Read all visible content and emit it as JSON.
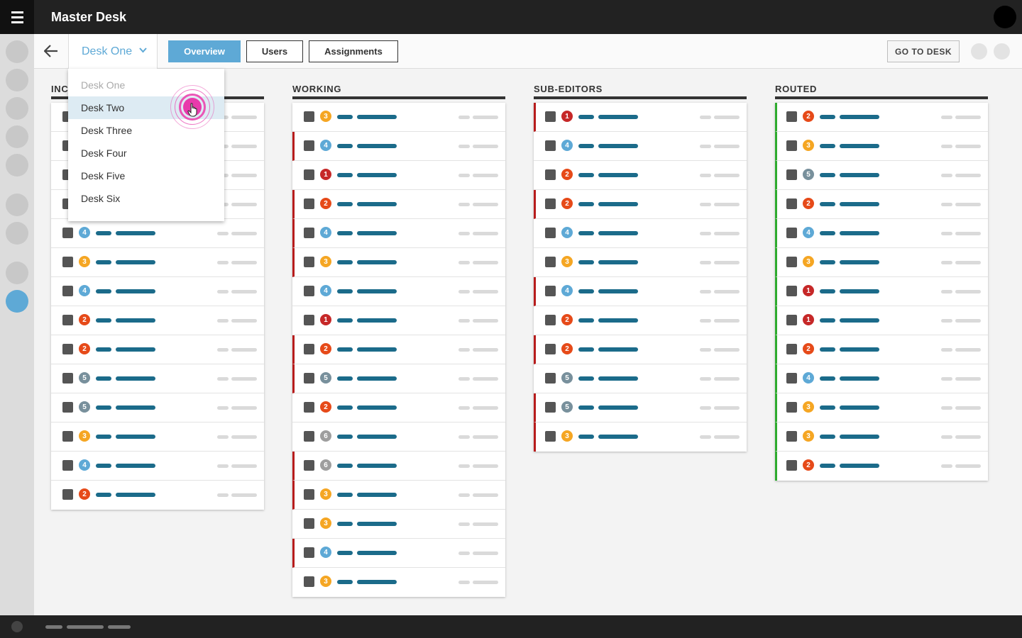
{
  "app": {
    "title": "Master Desk"
  },
  "subnav": {
    "desk_selected": "Desk One",
    "tabs": [
      "Overview",
      "Users",
      "Assignments"
    ],
    "active_tab": "Overview",
    "goto_label": "GO TO DESK"
  },
  "dropdown": {
    "options": [
      "Desk One",
      "Desk Two",
      "Desk Three",
      "Desk Four",
      "Desk Five",
      "Desk Six"
    ],
    "disabled_option": "Desk One",
    "hovered_option": "Desk Two"
  },
  "colors": {
    "accent": "#5ea9d6",
    "flag_red": "#b71c1c",
    "flag_green": "#2eab2e",
    "priority": {
      "1": "#c62828",
      "2": "#e64a19",
      "3": "#f5a623",
      "4": "#5ea9d6",
      "5": "#78909c",
      "6": "#9e9e9e"
    }
  },
  "columns": [
    {
      "title": "INC",
      "rows": [
        {
          "n": "",
          "flag": ""
        },
        {
          "n": "",
          "flag": ""
        },
        {
          "n": "",
          "flag": ""
        },
        {
          "n": "",
          "flag": ""
        },
        {
          "n": "4",
          "flag": ""
        },
        {
          "n": "3",
          "flag": ""
        },
        {
          "n": "4",
          "flag": ""
        },
        {
          "n": "2",
          "flag": ""
        },
        {
          "n": "2",
          "flag": ""
        },
        {
          "n": "5",
          "flag": ""
        },
        {
          "n": "5",
          "flag": ""
        },
        {
          "n": "3",
          "flag": ""
        },
        {
          "n": "4",
          "flag": ""
        },
        {
          "n": "2",
          "flag": ""
        }
      ]
    },
    {
      "title": "WORKING",
      "rows": [
        {
          "n": "3",
          "flag": ""
        },
        {
          "n": "4",
          "flag": "red"
        },
        {
          "n": "1",
          "flag": ""
        },
        {
          "n": "2",
          "flag": "red"
        },
        {
          "n": "4",
          "flag": "red"
        },
        {
          "n": "3",
          "flag": "red"
        },
        {
          "n": "4",
          "flag": ""
        },
        {
          "n": "1",
          "flag": ""
        },
        {
          "n": "2",
          "flag": "red"
        },
        {
          "n": "5",
          "flag": "red"
        },
        {
          "n": "2",
          "flag": ""
        },
        {
          "n": "6",
          "flag": ""
        },
        {
          "n": "6",
          "flag": "red"
        },
        {
          "n": "3",
          "flag": "red"
        },
        {
          "n": "3",
          "flag": ""
        },
        {
          "n": "4",
          "flag": "red"
        },
        {
          "n": "3",
          "flag": ""
        }
      ]
    },
    {
      "title": "SUB-EDITORS",
      "rows": [
        {
          "n": "1",
          "flag": "red"
        },
        {
          "n": "4",
          "flag": ""
        },
        {
          "n": "2",
          "flag": ""
        },
        {
          "n": "2",
          "flag": "red"
        },
        {
          "n": "4",
          "flag": ""
        },
        {
          "n": "3",
          "flag": ""
        },
        {
          "n": "4",
          "flag": "red"
        },
        {
          "n": "2",
          "flag": ""
        },
        {
          "n": "2",
          "flag": "red"
        },
        {
          "n": "5",
          "flag": ""
        },
        {
          "n": "5",
          "flag": "red"
        },
        {
          "n": "3",
          "flag": "red"
        }
      ]
    },
    {
      "title": "ROUTED",
      "rows": [
        {
          "n": "2",
          "flag": "green"
        },
        {
          "n": "3",
          "flag": "green"
        },
        {
          "n": "5",
          "flag": "green"
        },
        {
          "n": "2",
          "flag": "green"
        },
        {
          "n": "4",
          "flag": "green"
        },
        {
          "n": "3",
          "flag": "green"
        },
        {
          "n": "1",
          "flag": "green"
        },
        {
          "n": "1",
          "flag": "green"
        },
        {
          "n": "2",
          "flag": "green"
        },
        {
          "n": "4",
          "flag": "green"
        },
        {
          "n": "3",
          "flag": "green"
        },
        {
          "n": "3",
          "flag": "green"
        },
        {
          "n": "2",
          "flag": "green"
        }
      ]
    }
  ]
}
